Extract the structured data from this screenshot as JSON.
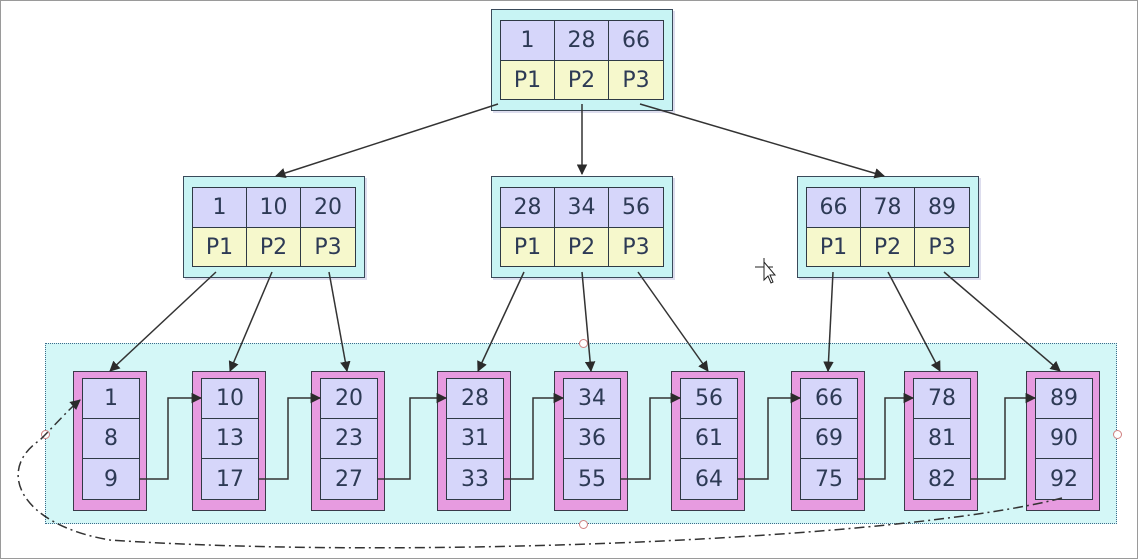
{
  "root": {
    "keys": [
      "1",
      "28",
      "66"
    ],
    "pointers": [
      "P1",
      "P2",
      "P3"
    ]
  },
  "internal": [
    {
      "keys": [
        "1",
        "10",
        "20"
      ],
      "pointers": [
        "P1",
        "P2",
        "P3"
      ]
    },
    {
      "keys": [
        "28",
        "34",
        "56"
      ],
      "pointers": [
        "P1",
        "P2",
        "P3"
      ]
    },
    {
      "keys": [
        "66",
        "78",
        "89"
      ],
      "pointers": [
        "P1",
        "P2",
        "P3"
      ]
    }
  ],
  "leaves": [
    [
      "1",
      "8",
      "9"
    ],
    [
      "10",
      "13",
      "17"
    ],
    [
      "20",
      "23",
      "27"
    ],
    [
      "28",
      "31",
      "33"
    ],
    [
      "34",
      "36",
      "55"
    ],
    [
      "56",
      "61",
      "64"
    ],
    [
      "66",
      "69",
      "75"
    ],
    [
      "78",
      "81",
      "82"
    ],
    [
      "89",
      "90",
      "92"
    ]
  ],
  "colors": {
    "key_cell": "#d6d6fa",
    "pointer_cell": "#f6f8cc",
    "node_background": "#c8f4f4",
    "leaf_background": "#e79be0",
    "leaf_area": "#d4f7f7"
  }
}
